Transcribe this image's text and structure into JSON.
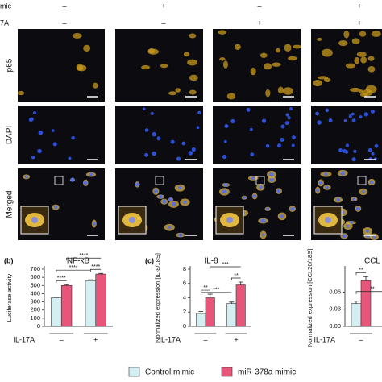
{
  "header": {
    "row_labels": [
      "mic",
      "7A"
    ],
    "signs": [
      [
        "–",
        "+",
        "–",
        "+"
      ],
      [
        "–",
        "–",
        "+",
        "+"
      ]
    ]
  },
  "image_rows": [
    "p65",
    "DAPI",
    "Merged"
  ],
  "legend": {
    "entries": [
      "Control mimic",
      "miR-378a mimic"
    ]
  },
  "chart_data": [
    {
      "type": "bar",
      "panel_label": "(b)",
      "title": "NF-κB",
      "y_label": "Luciferase activity",
      "x_label": "IL-17A",
      "categories": [
        "–",
        "+"
      ],
      "series": [
        {
          "name": "Control mimic",
          "color": "#d4eef2",
          "values": [
            350,
            560
          ],
          "errors": [
            8,
            10
          ]
        },
        {
          "name": "miR-378a mimic",
          "color": "#e8557a",
          "values": [
            500,
            640
          ],
          "errors": [
            10,
            8
          ]
        }
      ],
      "ylim": [
        0,
        700
      ],
      "yticks": [
        0,
        100,
        200,
        300,
        400,
        500,
        600,
        700
      ],
      "annotations": [
        "****",
        "****",
        "****",
        "****"
      ]
    },
    {
      "type": "bar",
      "panel_label": "(c)",
      "title": "IL-8",
      "y_label": "Normalized expression [IL-8/18S]",
      "x_label": "IL-17A",
      "categories": [
        "–",
        "+"
      ],
      "series": [
        {
          "name": "Control mimic",
          "color": "#d4eef2",
          "values": [
            1.8,
            3.2
          ],
          "errors": [
            0.3,
            0.2
          ]
        },
        {
          "name": "miR-378a mimic",
          "color": "#e8557a",
          "values": [
            4.0,
            5.8
          ],
          "errors": [
            0.5,
            0.4
          ]
        }
      ],
      "ylim": [
        0,
        8
      ],
      "yticks": [
        0,
        2,
        4,
        6,
        8
      ],
      "annotations": [
        "**",
        "***",
        "**",
        "***"
      ]
    },
    {
      "type": "bar",
      "title": "CCL",
      "y_label": "Normalized expression [CCL20/18S]",
      "x_label": "IL-17A",
      "categories": [
        "–",
        null
      ],
      "series": [
        {
          "name": "Control mimic",
          "color": "#d4eef2",
          "values": [
            0.04,
            null
          ],
          "errors": [
            0.004,
            null
          ]
        },
        {
          "name": "miR-378a mimic",
          "color": "#e8557a",
          "values": [
            0.08,
            null
          ],
          "errors": [
            0.007,
            null
          ]
        }
      ],
      "ylim": [
        0,
        0.1
      ],
      "yticks": [
        {
          "value": 0,
          "label": "0.00"
        },
        0.03,
        0.06
      ],
      "annotations": [
        "**",
        "**"
      ]
    }
  ]
}
